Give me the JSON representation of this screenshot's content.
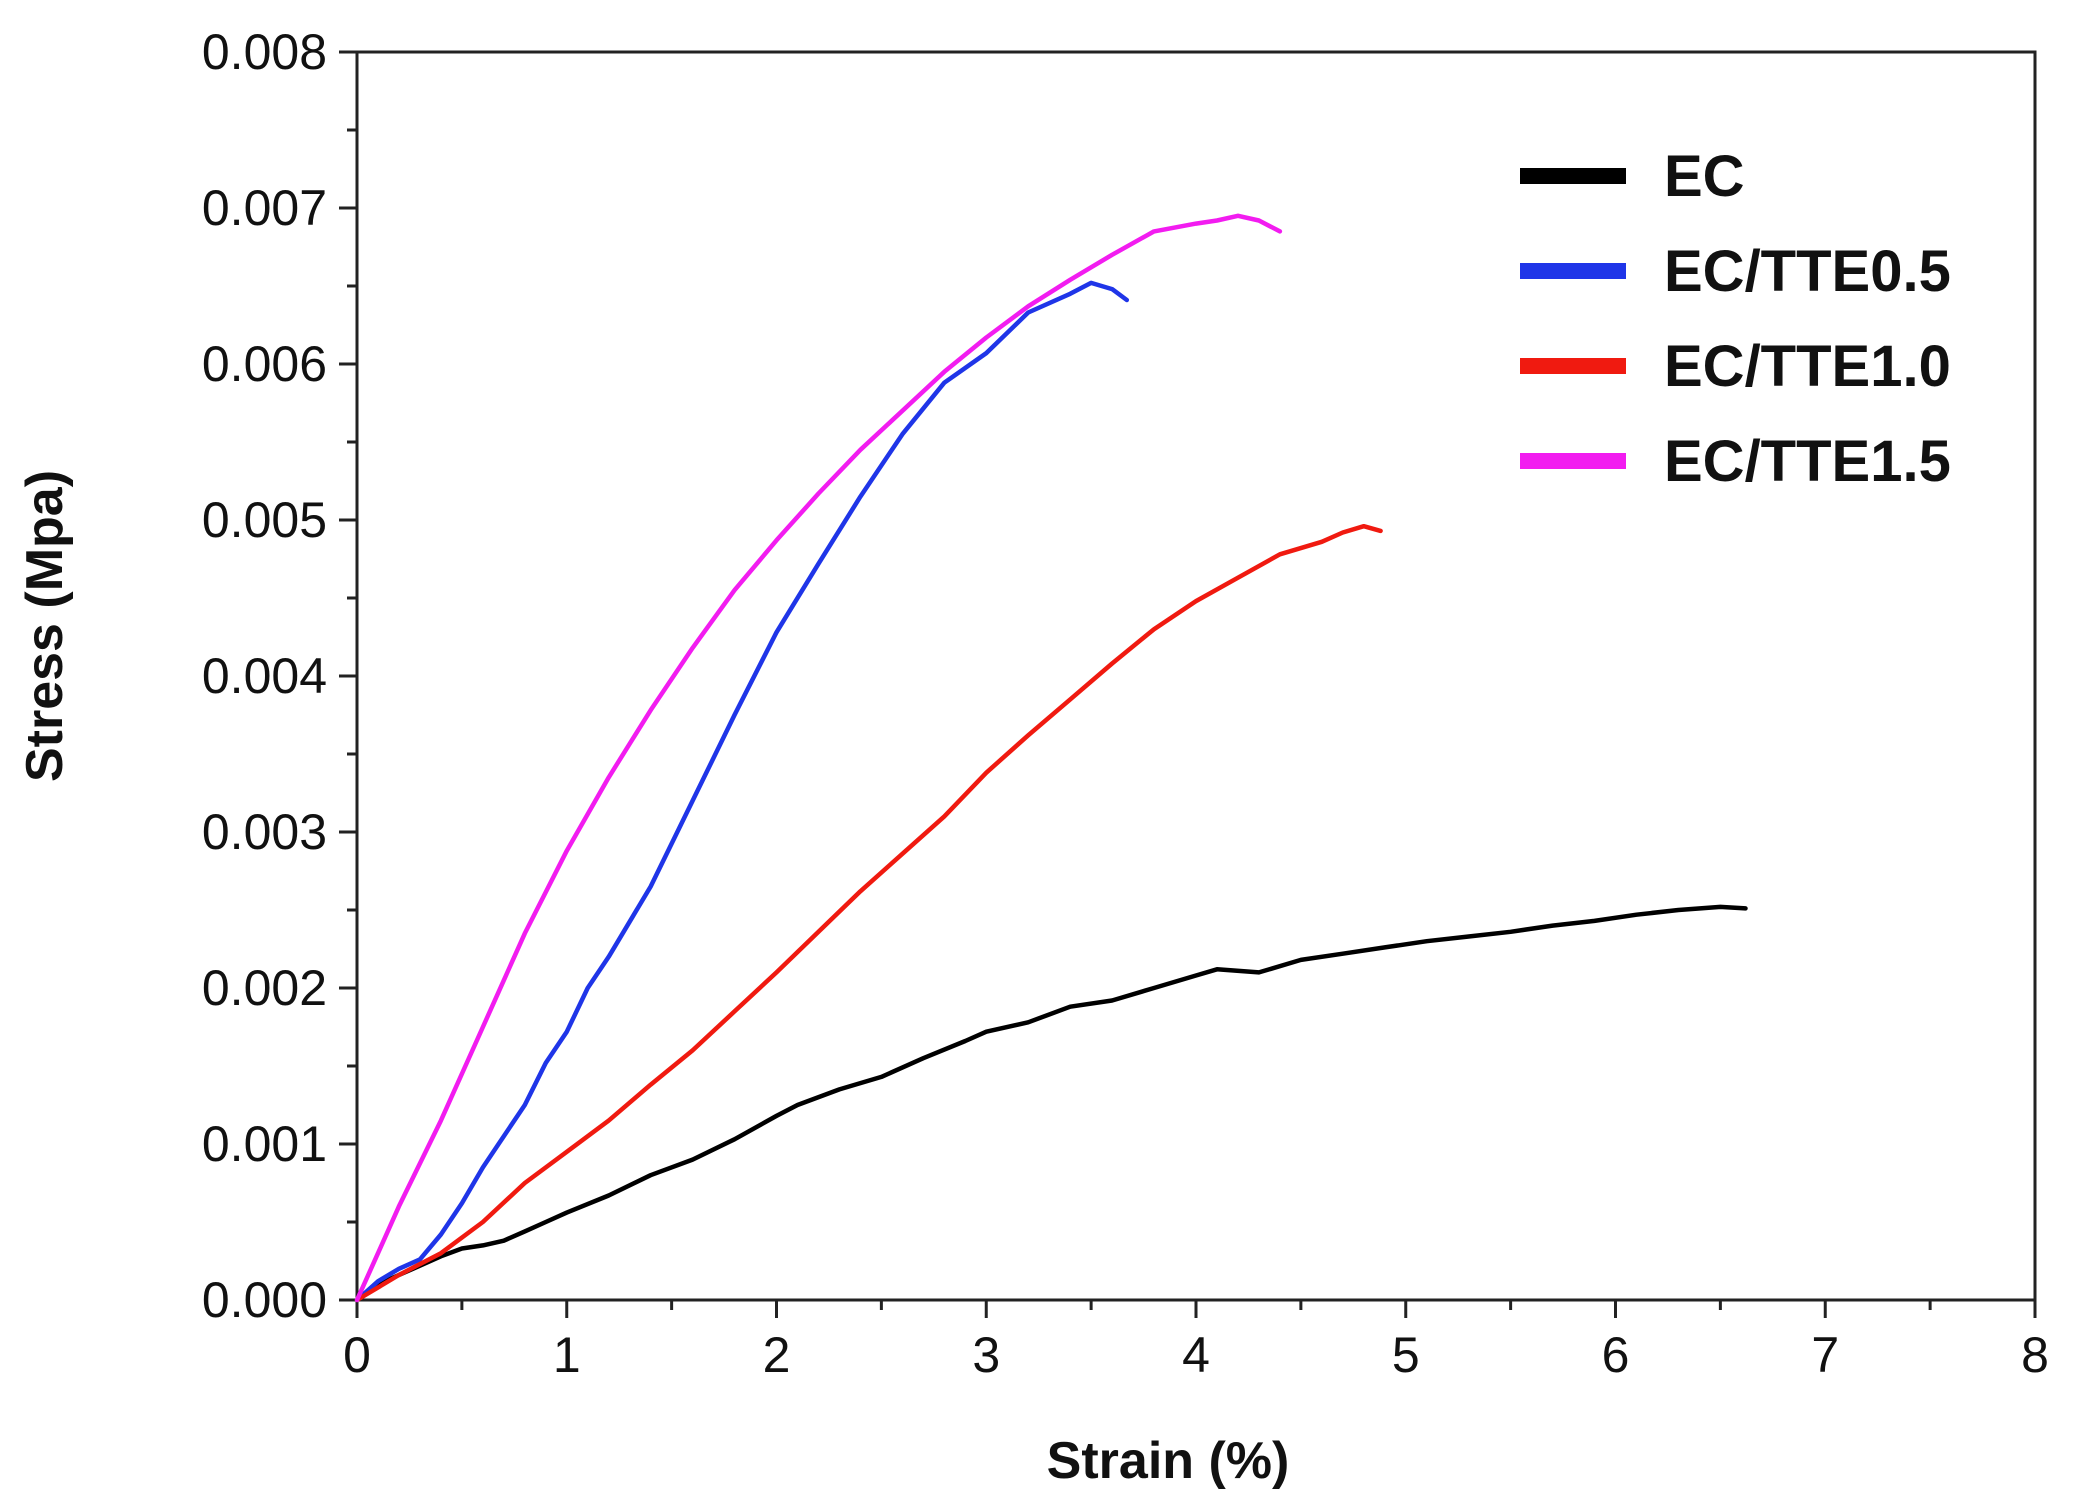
{
  "chart_data": {
    "type": "line",
    "title": "",
    "xlabel": "Strain (%)",
    "ylabel": "Stress (Mpa)",
    "xlim": [
      0,
      8
    ],
    "ylim": [
      0,
      0.008
    ],
    "grid": false,
    "legend_position": "top-right",
    "x_ticks": [
      {
        "value": 0,
        "label": "0"
      },
      {
        "value": 1,
        "label": "1"
      },
      {
        "value": 2,
        "label": "2"
      },
      {
        "value": 3,
        "label": "3"
      },
      {
        "value": 4,
        "label": "4"
      },
      {
        "value": 5,
        "label": "5"
      },
      {
        "value": 6,
        "label": "6"
      },
      {
        "value": 7,
        "label": "7"
      },
      {
        "value": 8,
        "label": "8"
      }
    ],
    "y_ticks": [
      {
        "value": 0.0,
        "label": "0.000"
      },
      {
        "value": 0.001,
        "label": "0.001"
      },
      {
        "value": 0.002,
        "label": "0.002"
      },
      {
        "value": 0.003,
        "label": "0.003"
      },
      {
        "value": 0.004,
        "label": "0.004"
      },
      {
        "value": 0.005,
        "label": "0.005"
      },
      {
        "value": 0.006,
        "label": "0.006"
      },
      {
        "value": 0.007,
        "label": "0.007"
      },
      {
        "value": 0.008,
        "label": "0.008"
      }
    ],
    "series": [
      {
        "name": "EC",
        "color": "#000000",
        "x": [
          0,
          0.1,
          0.2,
          0.3,
          0.4,
          0.5,
          0.6,
          0.7,
          0.8,
          0.9,
          1.0,
          1.2,
          1.4,
          1.6,
          1.8,
          2.0,
          2.1,
          2.3,
          2.5,
          2.7,
          2.9,
          3.0,
          3.2,
          3.4,
          3.6,
          3.8,
          4.0,
          4.1,
          4.3,
          4.5,
          4.7,
          4.9,
          5.1,
          5.3,
          5.5,
          5.7,
          5.9,
          6.1,
          6.3,
          6.5,
          6.62
        ],
        "y": [
          0,
          0.0001,
          0.00016,
          0.00022,
          0.00028,
          0.00033,
          0.00035,
          0.00038,
          0.00044,
          0.0005,
          0.00056,
          0.00067,
          0.0008,
          0.0009,
          0.00103,
          0.00118,
          0.00125,
          0.00135,
          0.00143,
          0.00155,
          0.00166,
          0.00172,
          0.00178,
          0.00188,
          0.00192,
          0.002,
          0.00208,
          0.00212,
          0.0021,
          0.00218,
          0.00222,
          0.00226,
          0.0023,
          0.00233,
          0.00236,
          0.0024,
          0.00243,
          0.00247,
          0.0025,
          0.00252,
          0.00251
        ]
      },
      {
        "name": "EC/TTE0.5",
        "color": "#1f35e8",
        "x": [
          0,
          0.1,
          0.2,
          0.3,
          0.4,
          0.5,
          0.6,
          0.7,
          0.8,
          0.9,
          1.0,
          1.1,
          1.2,
          1.4,
          1.6,
          1.8,
          2.0,
          2.2,
          2.4,
          2.6,
          2.8,
          3.0,
          3.2,
          3.4,
          3.5,
          3.6,
          3.67
        ],
        "y": [
          0,
          0.00012,
          0.0002,
          0.00026,
          0.00042,
          0.00062,
          0.00085,
          0.00105,
          0.00125,
          0.00152,
          0.00172,
          0.002,
          0.0022,
          0.00265,
          0.0032,
          0.00375,
          0.00428,
          0.00472,
          0.00515,
          0.00555,
          0.00588,
          0.00607,
          0.00633,
          0.00645,
          0.00652,
          0.00648,
          0.00641
        ]
      },
      {
        "name": "EC/TTE1.0",
        "color": "#f01a10",
        "x": [
          0,
          0.2,
          0.4,
          0.6,
          0.8,
          1.0,
          1.2,
          1.4,
          1.6,
          1.8,
          2.0,
          2.2,
          2.4,
          2.6,
          2.8,
          3.0,
          3.2,
          3.4,
          3.6,
          3.8,
          4.0,
          4.2,
          4.4,
          4.6,
          4.7,
          4.8,
          4.88
        ],
        "y": [
          0,
          0.00016,
          0.0003,
          0.0005,
          0.00075,
          0.00095,
          0.00115,
          0.00138,
          0.0016,
          0.00185,
          0.0021,
          0.00236,
          0.00262,
          0.00286,
          0.0031,
          0.00338,
          0.00362,
          0.00385,
          0.00408,
          0.0043,
          0.00448,
          0.00463,
          0.00478,
          0.00486,
          0.00492,
          0.00496,
          0.00493
        ]
      },
      {
        "name": "EC/TTE1.5",
        "color": "#f21cf0",
        "x": [
          0,
          0.1,
          0.2,
          0.4,
          0.6,
          0.8,
          1.0,
          1.2,
          1.4,
          1.6,
          1.8,
          2.0,
          2.2,
          2.4,
          2.6,
          2.8,
          3.0,
          3.2,
          3.4,
          3.6,
          3.8,
          4.0,
          4.1,
          4.2,
          4.3,
          4.4
        ],
        "y": [
          0,
          0.0003,
          0.0006,
          0.00115,
          0.00175,
          0.00235,
          0.00288,
          0.00335,
          0.00378,
          0.00418,
          0.00455,
          0.00487,
          0.00517,
          0.00545,
          0.0057,
          0.00595,
          0.00617,
          0.00637,
          0.00654,
          0.0067,
          0.00685,
          0.0069,
          0.00692,
          0.00695,
          0.00692,
          0.00685
        ]
      }
    ]
  }
}
